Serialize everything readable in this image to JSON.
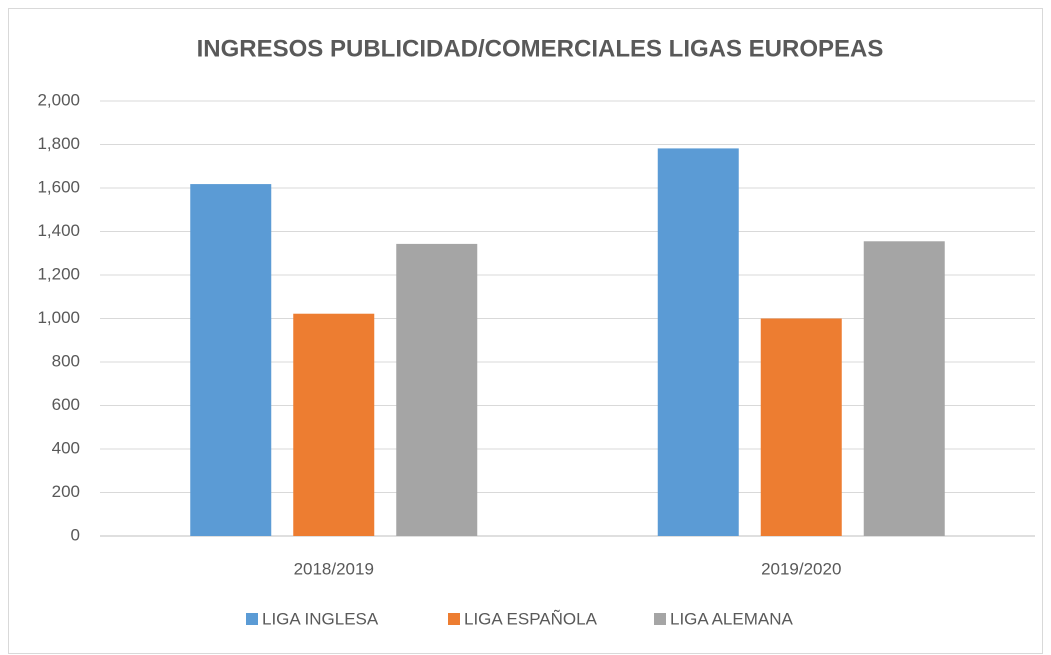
{
  "chart_data": {
    "type": "bar",
    "title": "INGRESOS PUBLICIDAD/COMERCIALES LIGAS EUROPEAS",
    "categories": [
      "2018/2019",
      "2019/2020"
    ],
    "series": [
      {
        "name": "LIGA INGLESA",
        "color": "#5b9bd5",
        "values": [
          1618,
          1782
        ]
      },
      {
        "name": "LIGA ESPAÑOLA",
        "color": "#ed7d31",
        "values": [
          1022,
          1000
        ]
      },
      {
        "name": "LIGA ALEMANA",
        "color": "#a5a5a5",
        "values": [
          1343,
          1355
        ]
      }
    ],
    "ylim": [
      0,
      2000
    ],
    "yticks": [
      0,
      200,
      400,
      600,
      800,
      {
        "value": 1000,
        "label": "1,000"
      },
      {
        "value": 1200,
        "label": "1,200"
      },
      {
        "value": 1400,
        "label": "1,400"
      },
      {
        "value": 1600,
        "label": "1,600"
      },
      {
        "value": 1800,
        "label": "1,800"
      },
      {
        "value": 2000,
        "label": "2,000"
      }
    ],
    "grid": true,
    "legend": "bottom"
  }
}
